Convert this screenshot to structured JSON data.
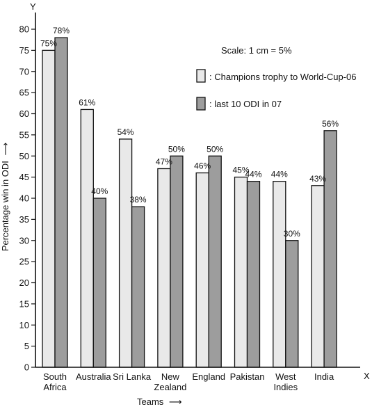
{
  "chart_data": {
    "type": "bar",
    "title": "",
    "axis_letter_x": "X",
    "axis_letter_y": "Y",
    "xlabel": "Teams",
    "xlabel_arrow": "⟶",
    "ylabel": "Percentage win in ODI",
    "ylabel_arrow": "⟶",
    "ylim": [
      0,
      80
    ],
    "yticks": [
      0,
      5,
      10,
      15,
      20,
      25,
      30,
      35,
      40,
      45,
      50,
      55,
      60,
      65,
      70,
      75,
      80
    ],
    "categories": [
      [
        "South",
        "Africa"
      ],
      [
        "Australia"
      ],
      [
        "Sri Lanka"
      ],
      [
        "New",
        "Zealand"
      ],
      [
        "England"
      ],
      [
        "Pakistan"
      ],
      [
        "West",
        "Indies"
      ],
      [
        "India"
      ]
    ],
    "series": [
      {
        "name": ": Champions trophy to World-Cup-06",
        "values": [
          75,
          61,
          54,
          47,
          46,
          45,
          44,
          43
        ],
        "labels": [
          "75%",
          "61%",
          "54%",
          "47%",
          "46%",
          "45%",
          "44%",
          "43%"
        ],
        "color": "#e9e9e9"
      },
      {
        "name": ": last 10 ODI in 07",
        "values": [
          78,
          40,
          38,
          50,
          50,
          44,
          30,
          56
        ],
        "labels": [
          "78%",
          "40%",
          "38%",
          "50%",
          "50%",
          "44%",
          "30%",
          "56%"
        ],
        "color": "#9d9d9d"
      }
    ],
    "annotation": "Scale: 1 cm = 5%",
    "legend_position": "top-right",
    "grid": false
  }
}
